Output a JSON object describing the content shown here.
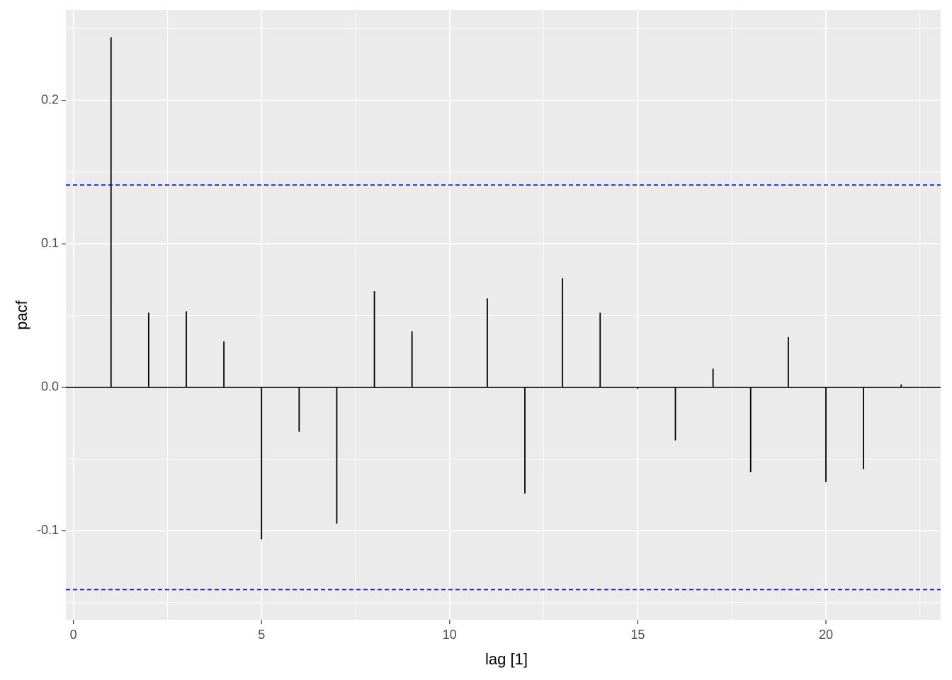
{
  "chart_data": {
    "type": "lollipop-pacf",
    "x_label": "lag [1]",
    "y_label": "pacf",
    "x": [
      1,
      2,
      3,
      4,
      5,
      6,
      7,
      8,
      9,
      10,
      11,
      12,
      13,
      14,
      15,
      16,
      17,
      18,
      19,
      20,
      21,
      22
    ],
    "values": [
      0.244,
      0.052,
      0.053,
      0.032,
      -0.106,
      -0.031,
      -0.095,
      0.067,
      0.039,
      0.0,
      0.062,
      -0.074,
      0.076,
      0.052,
      -0.001,
      -0.037,
      0.013,
      -0.059,
      0.035,
      -0.066,
      -0.057,
      0.002
    ],
    "color": "#000000",
    "confidence_bounds": [
      0.141,
      -0.141
    ],
    "bound_color": "#0000cc",
    "xlim": [
      -0.2,
      23.05
    ],
    "xticks": [
      0,
      5,
      10,
      15,
      20
    ],
    "ylim": [
      -0.162,
      0.263
    ],
    "yticks": [
      -0.1,
      {
        "value": 0,
        "label": "0.0"
      },
      0.1,
      0.2
    ],
    "grid": true
  }
}
